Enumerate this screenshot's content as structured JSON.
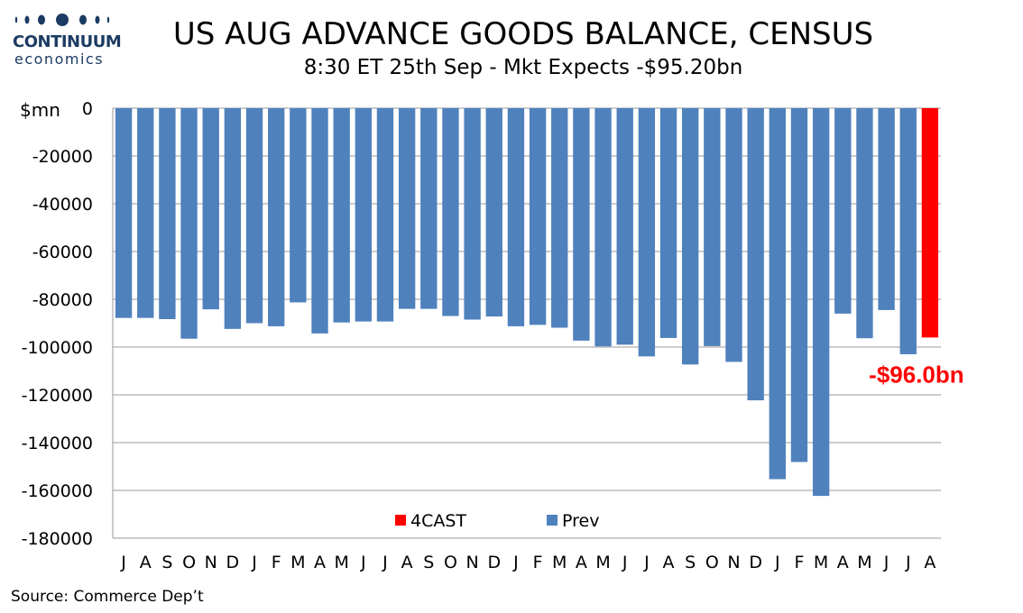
{
  "logo": {
    "name": "CONTINUUM",
    "sub": "economics"
  },
  "header": {
    "title": "US AUG ADVANCE GOODS BALANCE, CENSUS",
    "subtitle": "8:30 ET 25th Sep - Mkt Expects -$95.20bn"
  },
  "footer": {
    "source": "Source: Commerce Dep’t"
  },
  "colors": {
    "prev": "#4f81bd",
    "forecast": "#ff0000",
    "grid": "#999999",
    "logo": "#1c3b63"
  },
  "chart_data": {
    "type": "bar",
    "unit_label": "$mn",
    "ylim": [
      -180000,
      0
    ],
    "yticks": [
      0,
      -20000,
      -40000,
      -60000,
      -80000,
      -100000,
      -120000,
      -140000,
      -160000,
      -180000
    ],
    "grid": true,
    "legend_position": "bottom-center",
    "categories": [
      "J",
      "A",
      "S",
      "O",
      "N",
      "D",
      "J",
      "F",
      "M",
      "A",
      "M",
      "J",
      "J",
      "A",
      "S",
      "O",
      "N",
      "D",
      "J",
      "F",
      "M",
      "A",
      "M",
      "J",
      "J",
      "A",
      "S",
      "O",
      "N",
      "D",
      "J",
      "F",
      "M",
      "A",
      "M",
      "J",
      "J",
      "A"
    ],
    "series": [
      {
        "name": "Prev",
        "color": "#4f81bd",
        "values": [
          -87800,
          -87800,
          -88300,
          -96500,
          -84200,
          -92400,
          -90000,
          -91300,
          -81300,
          -94300,
          -89700,
          -89300,
          -89300,
          -84000,
          -84000,
          -87000,
          -88500,
          -87200,
          -91300,
          -90700,
          -91900,
          -97300,
          -99700,
          -99000,
          -103900,
          -96200,
          -107300,
          -99600,
          -106200,
          -122300,
          -155300,
          -148100,
          -162300,
          -86000,
          -96300,
          -84500,
          -103000,
          null
        ]
      },
      {
        "name": "4CAST",
        "color": "#ff0000",
        "values": [
          null,
          null,
          null,
          null,
          null,
          null,
          null,
          null,
          null,
          null,
          null,
          null,
          null,
          null,
          null,
          null,
          null,
          null,
          null,
          null,
          null,
          null,
          null,
          null,
          null,
          null,
          null,
          null,
          null,
          null,
          null,
          null,
          null,
          null,
          null,
          null,
          null,
          -96000
        ]
      }
    ],
    "annotations": [
      {
        "text": "-$96.0bn",
        "color": "#ff0000"
      }
    ]
  }
}
